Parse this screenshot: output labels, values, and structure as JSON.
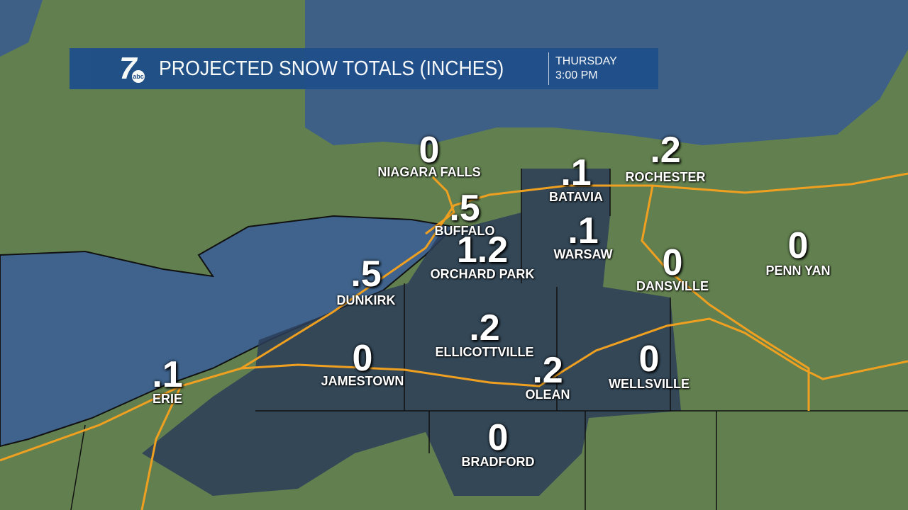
{
  "header": {
    "title": "PROJECTED SNOW TOTALS (INCHES)",
    "day": "THURSDAY",
    "time": "3:00 PM",
    "logo": "7 abc"
  },
  "colors": {
    "banner": "#1f4f8a",
    "roads": "#f0a020",
    "lake": "#3e5f86",
    "snow_region": "#2c3d58",
    "land": "#5f7a4c"
  },
  "locations": [
    {
      "name": "NIAGARA FALLS",
      "total": "0"
    },
    {
      "name": "BATAVIA",
      "total": ".1"
    },
    {
      "name": "ROCHESTER",
      "total": ".2"
    },
    {
      "name": "BUFFALO",
      "total": ".5"
    },
    {
      "name": "ORCHARD PARK",
      "total": "1.2"
    },
    {
      "name": "WARSAW",
      "total": ".1"
    },
    {
      "name": "DANSVILLE",
      "total": "0"
    },
    {
      "name": "PENN YAN",
      "total": "0"
    },
    {
      "name": "DUNKIRK",
      "total": ".5"
    },
    {
      "name": "ELLICOTTVILLE",
      "total": ".2"
    },
    {
      "name": "JAMESTOWN",
      "total": "0"
    },
    {
      "name": "OLEAN",
      "total": ".2"
    },
    {
      "name": "WELLSVILLE",
      "total": "0"
    },
    {
      "name": "ERIE",
      "total": ".1"
    },
    {
      "name": "BRADFORD",
      "total": "0"
    }
  ]
}
